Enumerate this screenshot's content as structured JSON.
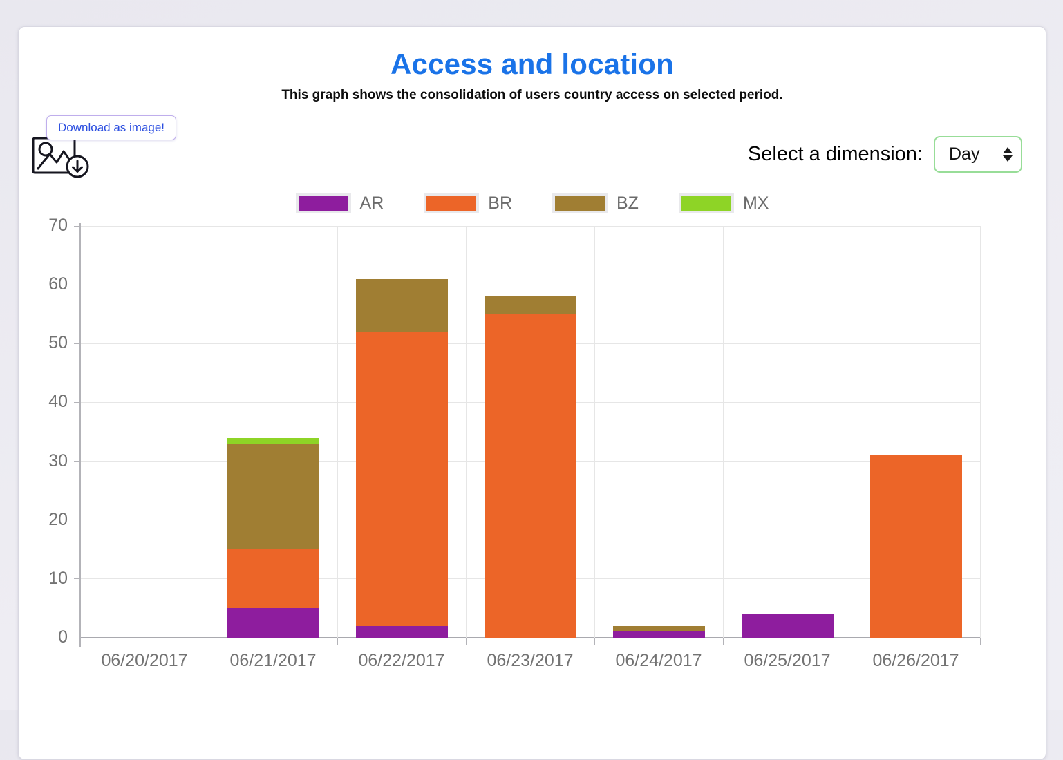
{
  "page": {
    "title": "Access and location",
    "subtitle": "This graph shows the consolidation of users country access on selected period."
  },
  "toolbar": {
    "download_label": "Download as image!",
    "dimension_label": "Select a dimension:",
    "dimension_value": "Day"
  },
  "chart_data": {
    "type": "bar",
    "stacked": true,
    "title": "Access and location",
    "categories": [
      "06/20/2017",
      "06/21/2017",
      "06/22/2017",
      "06/23/2017",
      "06/24/2017",
      "06/25/2017",
      "06/26/2017"
    ],
    "series": [
      {
        "name": "AR",
        "color": "#8e1d9e",
        "values": [
          0,
          5,
          2,
          0,
          1,
          4,
          0
        ]
      },
      {
        "name": "BR",
        "color": "#ec6528",
        "values": [
          0,
          10,
          50,
          55,
          0,
          0,
          31
        ]
      },
      {
        "name": "BZ",
        "color": "#a07e33",
        "values": [
          0,
          18,
          9,
          3,
          1,
          0,
          0
        ]
      },
      {
        "name": "MX",
        "color": "#8ed426",
        "values": [
          0,
          1,
          0,
          0,
          0,
          0,
          0
        ]
      }
    ],
    "totals": [
      0,
      34,
      61,
      58,
      2,
      4,
      31
    ],
    "ylim": [
      0,
      70
    ],
    "yticks": [
      0,
      10,
      20,
      30,
      40,
      50,
      60,
      70
    ],
    "grid": true,
    "legend_position": "top",
    "xlabel": "",
    "ylabel": ""
  },
  "colors": {
    "title_blue": "#1a73e8",
    "download_text": "#2b4ee0",
    "download_border": "#bfaeec",
    "select_border": "#98dd98",
    "gridline": "#e6e6e6",
    "axis": "#b3b3b8",
    "tick_text": "#737373"
  }
}
